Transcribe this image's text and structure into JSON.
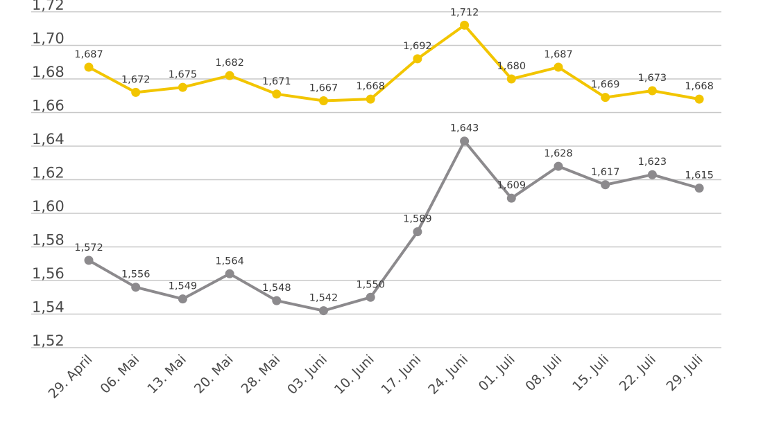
{
  "chart_data": {
    "type": "line",
    "title": "",
    "xlabel": "",
    "ylabel": "",
    "categories": [
      "29. April",
      "06. Mai",
      "13. Mai",
      "20. Mai",
      "28. Mai",
      "03. Juni",
      "10. Juni",
      "17. Juni",
      "24. Juni",
      "01. Juli",
      "08. Juli",
      "15. Juli",
      "22. Juli",
      "29. Juli"
    ],
    "ylim": [
      1.52,
      1.72
    ],
    "yticks": [
      1.52,
      1.54,
      1.56,
      1.58,
      1.6,
      1.62,
      1.64,
      1.66,
      1.68,
      1.7,
      1.72
    ],
    "ytick_labels": [
      "1,52",
      "1,54",
      "1,56",
      "1,58",
      "1,60",
      "1,62",
      "1,64",
      "1,66",
      "1,68",
      "1,70",
      "1,72"
    ],
    "grid": true,
    "legend": "none",
    "series": [
      {
        "color": "#f2c500",
        "values": [
          1.687,
          1.672,
          1.675,
          1.682,
          1.671,
          1.667,
          1.668,
          1.692,
          1.712,
          1.68,
          1.687,
          1.669,
          1.673,
          1.668
        ],
        "labels": [
          "1,687",
          "1,672",
          "1,675",
          "1,682",
          "1,671",
          "1,667",
          "1,668",
          "1,692",
          "1,712",
          "1,680",
          "1,687",
          "1,669",
          "1,673",
          "1,668"
        ]
      },
      {
        "color": "#8c8a8d",
        "values": [
          1.572,
          1.556,
          1.549,
          1.564,
          1.548,
          1.542,
          1.55,
          1.589,
          1.643,
          1.609,
          1.628,
          1.617,
          1.623,
          1.615
        ],
        "labels": [
          "1,572",
          "1,556",
          "1,549",
          "1,564",
          "1,548",
          "1,542",
          "1,550",
          "1,589",
          "1,643",
          "1,609",
          "1,628",
          "1,617",
          "1,623",
          "1,615"
        ]
      }
    ]
  }
}
